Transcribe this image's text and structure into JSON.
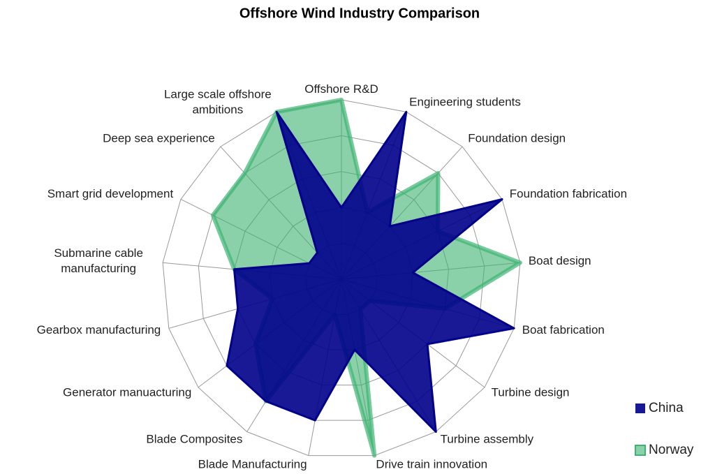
{
  "chart_data": {
    "type": "radar",
    "title": "Offshore Wind Industry Comparison",
    "categories": [
      "Offshore R&D",
      "Engineering students",
      "Foundation design",
      "Foundation fabrication",
      "Boat design",
      "Boat fabrication",
      "Turbine design",
      "Turbine assembly",
      "Drive train innovation",
      "Blade Manufacturing",
      "Blade Composites",
      "Generator manuacturing",
      "Gearbox manufacturing",
      "Submarine cable\nmanufacturing",
      "Smart grid development",
      "Deep sea experience",
      "Large scale offshore\nambitions"
    ],
    "series": [
      {
        "name": "China",
        "color": "#00008b",
        "values": [
          2,
          5,
          2,
          5,
          2,
          5,
          3,
          5,
          2,
          4,
          4,
          4,
          3,
          3,
          1,
          1,
          5
        ]
      },
      {
        "name": "Norway",
        "color": "#3cb371",
        "values": [
          5,
          2,
          4,
          3,
          5,
          3,
          1,
          1,
          5,
          1,
          4,
          3,
          2,
          3,
          4,
          4,
          5
        ]
      }
    ],
    "rlim": [
      0,
      5
    ],
    "rticks": [
      0,
      1,
      2,
      3,
      4,
      5
    ],
    "grid": true,
    "legend": "lower right"
  }
}
